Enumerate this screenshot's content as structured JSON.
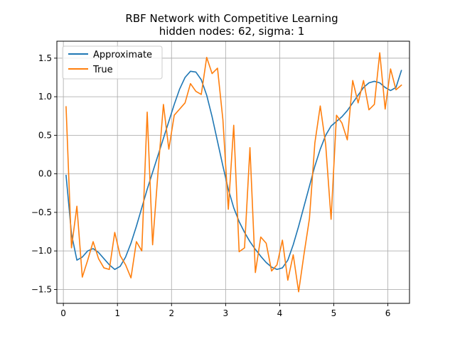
{
  "chart_data": {
    "type": "line",
    "title": "RBF Network with Competitive Learning",
    "subtitle": "hidden nodes: 62, sigma: 1",
    "xlabel": "",
    "ylabel": "",
    "xlim": [
      -0.12,
      6.4
    ],
    "ylim": [
      -1.68,
      1.72
    ],
    "xticks": [
      0,
      1,
      2,
      3,
      4,
      5,
      6
    ],
    "xtick_labels": [
      "0",
      "1",
      "2",
      "3",
      "4",
      "5",
      "6"
    ],
    "yticks": [
      -1.5,
      -1.0,
      -0.5,
      0.0,
      0.5,
      1.0,
      1.5
    ],
    "ytick_labels": [
      "−1.5",
      "−1.0",
      "−0.5",
      "0.0",
      "0.5",
      "1.0",
      "1.5"
    ],
    "grid": true,
    "legend": "upper-left",
    "series": [
      {
        "name": "Approximate",
        "color": "#1f77b4",
        "x": [
          0.05,
          0.15,
          0.25,
          0.35,
          0.45,
          0.55,
          0.65,
          0.75,
          0.85,
          0.95,
          1.05,
          1.15,
          1.25,
          1.35,
          1.45,
          1.55,
          1.65,
          1.75,
          1.85,
          1.95,
          2.05,
          2.15,
          2.25,
          2.35,
          2.45,
          2.55,
          2.65,
          2.75,
          2.85,
          2.95,
          3.05,
          3.15,
          3.25,
          3.35,
          3.45,
          3.55,
          3.65,
          3.75,
          3.85,
          3.95,
          4.05,
          4.15,
          4.25,
          4.35,
          4.45,
          4.55,
          4.65,
          4.75,
          4.85,
          4.95,
          5.05,
          5.15,
          5.25,
          5.35,
          5.45,
          5.55,
          5.65,
          5.75,
          5.85,
          5.95,
          6.05,
          6.15,
          6.25
        ],
        "y": [
          -0.02,
          -0.78,
          -1.12,
          -1.08,
          -1.0,
          -0.97,
          -1.02,
          -1.1,
          -1.18,
          -1.24,
          -1.2,
          -1.08,
          -0.9,
          -0.68,
          -0.44,
          -0.2,
          0.02,
          0.24,
          0.46,
          0.68,
          0.9,
          1.1,
          1.25,
          1.33,
          1.32,
          1.22,
          1.02,
          0.74,
          0.42,
          0.1,
          -0.2,
          -0.44,
          -0.62,
          -0.76,
          -0.88,
          -0.98,
          -1.07,
          -1.15,
          -1.21,
          -1.24,
          -1.22,
          -1.12,
          -0.92,
          -0.68,
          -0.42,
          -0.16,
          0.1,
          0.32,
          0.5,
          0.62,
          0.68,
          0.74,
          0.82,
          0.92,
          1.02,
          1.12,
          1.18,
          1.2,
          1.18,
          1.12,
          1.08,
          1.12,
          1.34
        ]
      },
      {
        "name": "True",
        "color": "#ff7f0e",
        "x": [
          0.05,
          0.15,
          0.25,
          0.35,
          0.45,
          0.55,
          0.65,
          0.75,
          0.85,
          0.95,
          1.05,
          1.15,
          1.25,
          1.35,
          1.45,
          1.55,
          1.65,
          1.75,
          1.85,
          1.95,
          2.05,
          2.15,
          2.25,
          2.35,
          2.45,
          2.55,
          2.65,
          2.75,
          2.85,
          2.95,
          3.05,
          3.15,
          3.25,
          3.35,
          3.45,
          3.55,
          3.65,
          3.75,
          3.85,
          3.95,
          4.05,
          4.15,
          4.25,
          4.35,
          4.45,
          4.55,
          4.65,
          4.75,
          4.85,
          4.95,
          5.05,
          5.15,
          5.25,
          5.35,
          5.45,
          5.55,
          5.65,
          5.75,
          5.85,
          5.95,
          6.05,
          6.15,
          6.25
        ],
        "y": [
          0.87,
          -0.96,
          -0.42,
          -1.34,
          -1.12,
          -0.88,
          -1.1,
          -1.22,
          -1.24,
          -0.76,
          -1.06,
          -1.18,
          -1.35,
          -0.88,
          -1.0,
          0.8,
          -0.92,
          0.02,
          0.9,
          0.32,
          0.76,
          0.84,
          0.92,
          1.17,
          1.07,
          1.03,
          1.51,
          1.3,
          1.37,
          0.7,
          -0.46,
          0.63,
          -1.01,
          -0.96,
          0.34,
          -1.28,
          -0.82,
          -0.9,
          -1.26,
          -1.18,
          -0.86,
          -1.38,
          -1.05,
          -1.53,
          -1.04,
          -0.58,
          0.4,
          0.88,
          0.38,
          -0.59,
          0.76,
          0.66,
          0.44,
          1.21,
          0.92,
          1.21,
          0.83,
          0.9,
          1.57,
          0.84,
          1.36,
          1.09,
          1.15
        ]
      }
    ]
  }
}
